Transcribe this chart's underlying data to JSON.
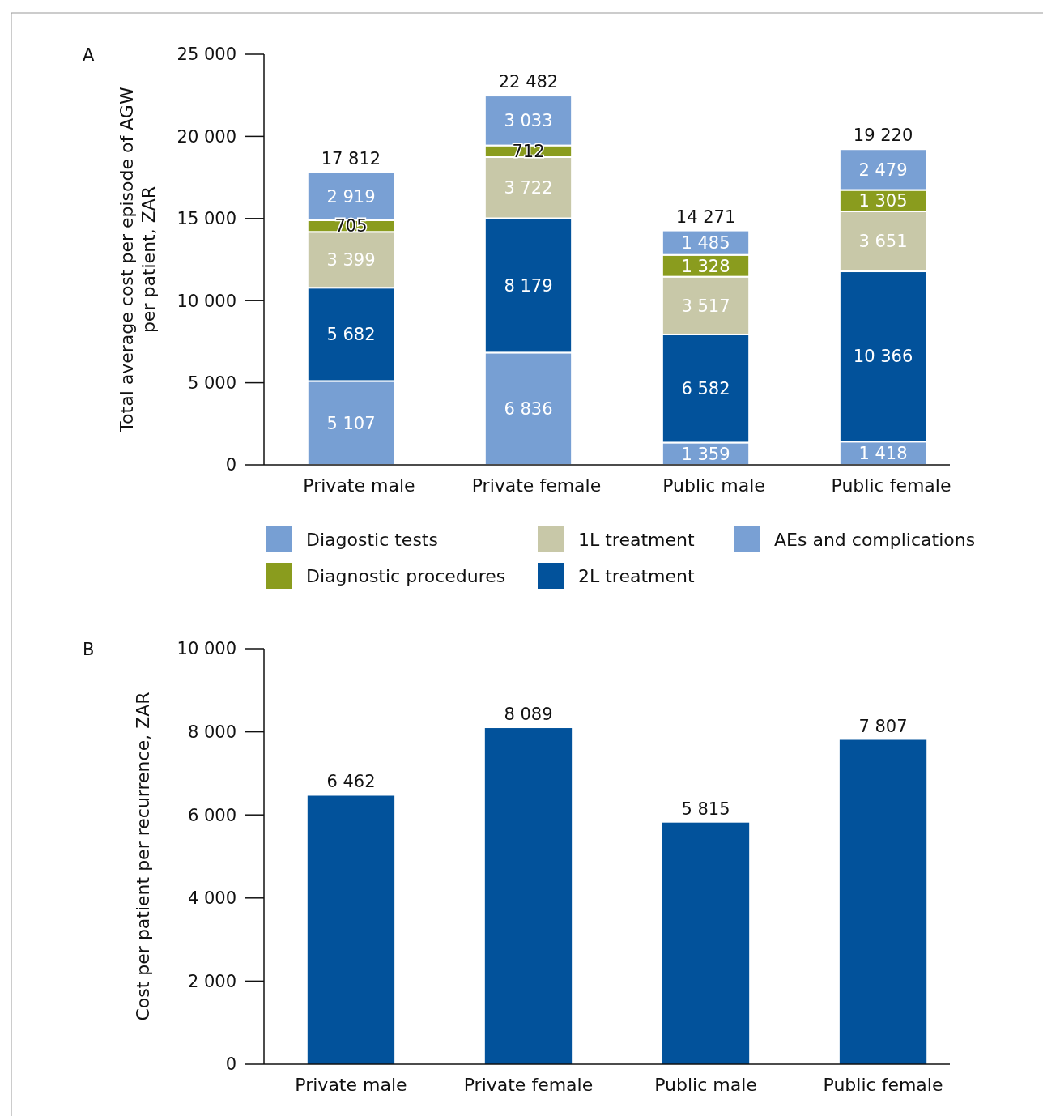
{
  "chart_data": [
    {
      "type": "bar",
      "stacked": true,
      "ylabel": "Total average cost per episode of AGW\nper patient, ZAR",
      "annotations": [
        "A"
      ],
      "categories": [
        "Private male",
        "Private female",
        "Public male",
        "Public female"
      ],
      "ylim": [
        0,
        25000
      ],
      "yticks": [
        0,
        {
          "value": 5000,
          "label": "5 000"
        },
        {
          "value": 10000,
          "label": "10 000"
        },
        {
          "value": 15000,
          "label": "15 000"
        },
        {
          "value": 20000,
          "label": "20 000"
        },
        {
          "value": 25000,
          "label": "25 000"
        }
      ],
      "legend": "bottom",
      "totals": [
        "17 812",
        "22 482",
        "14 271",
        "19 220"
      ],
      "series": [
        {
          "name": "Diagostic tests",
          "color": "#779fd3",
          "values": [
            5107,
            6836,
            1359,
            1418
          ],
          "value_labels": [
            "5 107",
            "6 836",
            "1 359",
            "1 418"
          ]
        },
        {
          "name": "2L treatment",
          "color": "#02529b",
          "values": [
            5682,
            8179,
            6582,
            10366
          ],
          "value_labels": [
            "5 682",
            "8 179",
            "6 582",
            "10 366"
          ]
        },
        {
          "name": "1L treatment",
          "color": "#c8c8a8",
          "values": [
            3399,
            3722,
            3517,
            3651
          ],
          "value_labels": [
            "3 399",
            "3 722",
            "3 517",
            "3 651"
          ]
        },
        {
          "name": "Diagnostic procedures",
          "color": "#8a9c1e",
          "values": [
            705,
            712,
            1328,
            1305
          ],
          "value_labels": [
            "705",
            "712",
            "1 328",
            "1 305"
          ]
        },
        {
          "name": "AEs and complications",
          "color": "#79a0d4",
          "values": [
            2919,
            3033,
            1485,
            2479
          ],
          "value_labels": [
            "2 919",
            "3 033",
            "1 485",
            "2 479"
          ]
        }
      ]
    },
    {
      "type": "bar",
      "ylabel": "Cost per patient per recurrence, ZAR",
      "annotations": [
        "B"
      ],
      "categories": [
        "Private male",
        "Private female",
        "Public male",
        "Public female"
      ],
      "ylim": [
        0,
        10000
      ],
      "yticks": [
        0,
        {
          "value": 2000,
          "label": "2 000"
        },
        {
          "value": 4000,
          "label": "4 000"
        },
        {
          "value": 6000,
          "label": "6 000"
        },
        {
          "value": 8000,
          "label": "8 000"
        },
        {
          "value": 10000,
          "label": "10 000"
        }
      ],
      "series": [
        {
          "color": "#02529b",
          "values": [
            6462,
            8089,
            5815,
            7807
          ],
          "value_labels": [
            "6 462",
            "8 089",
            "5 815",
            "7 807"
          ]
        }
      ]
    }
  ]
}
